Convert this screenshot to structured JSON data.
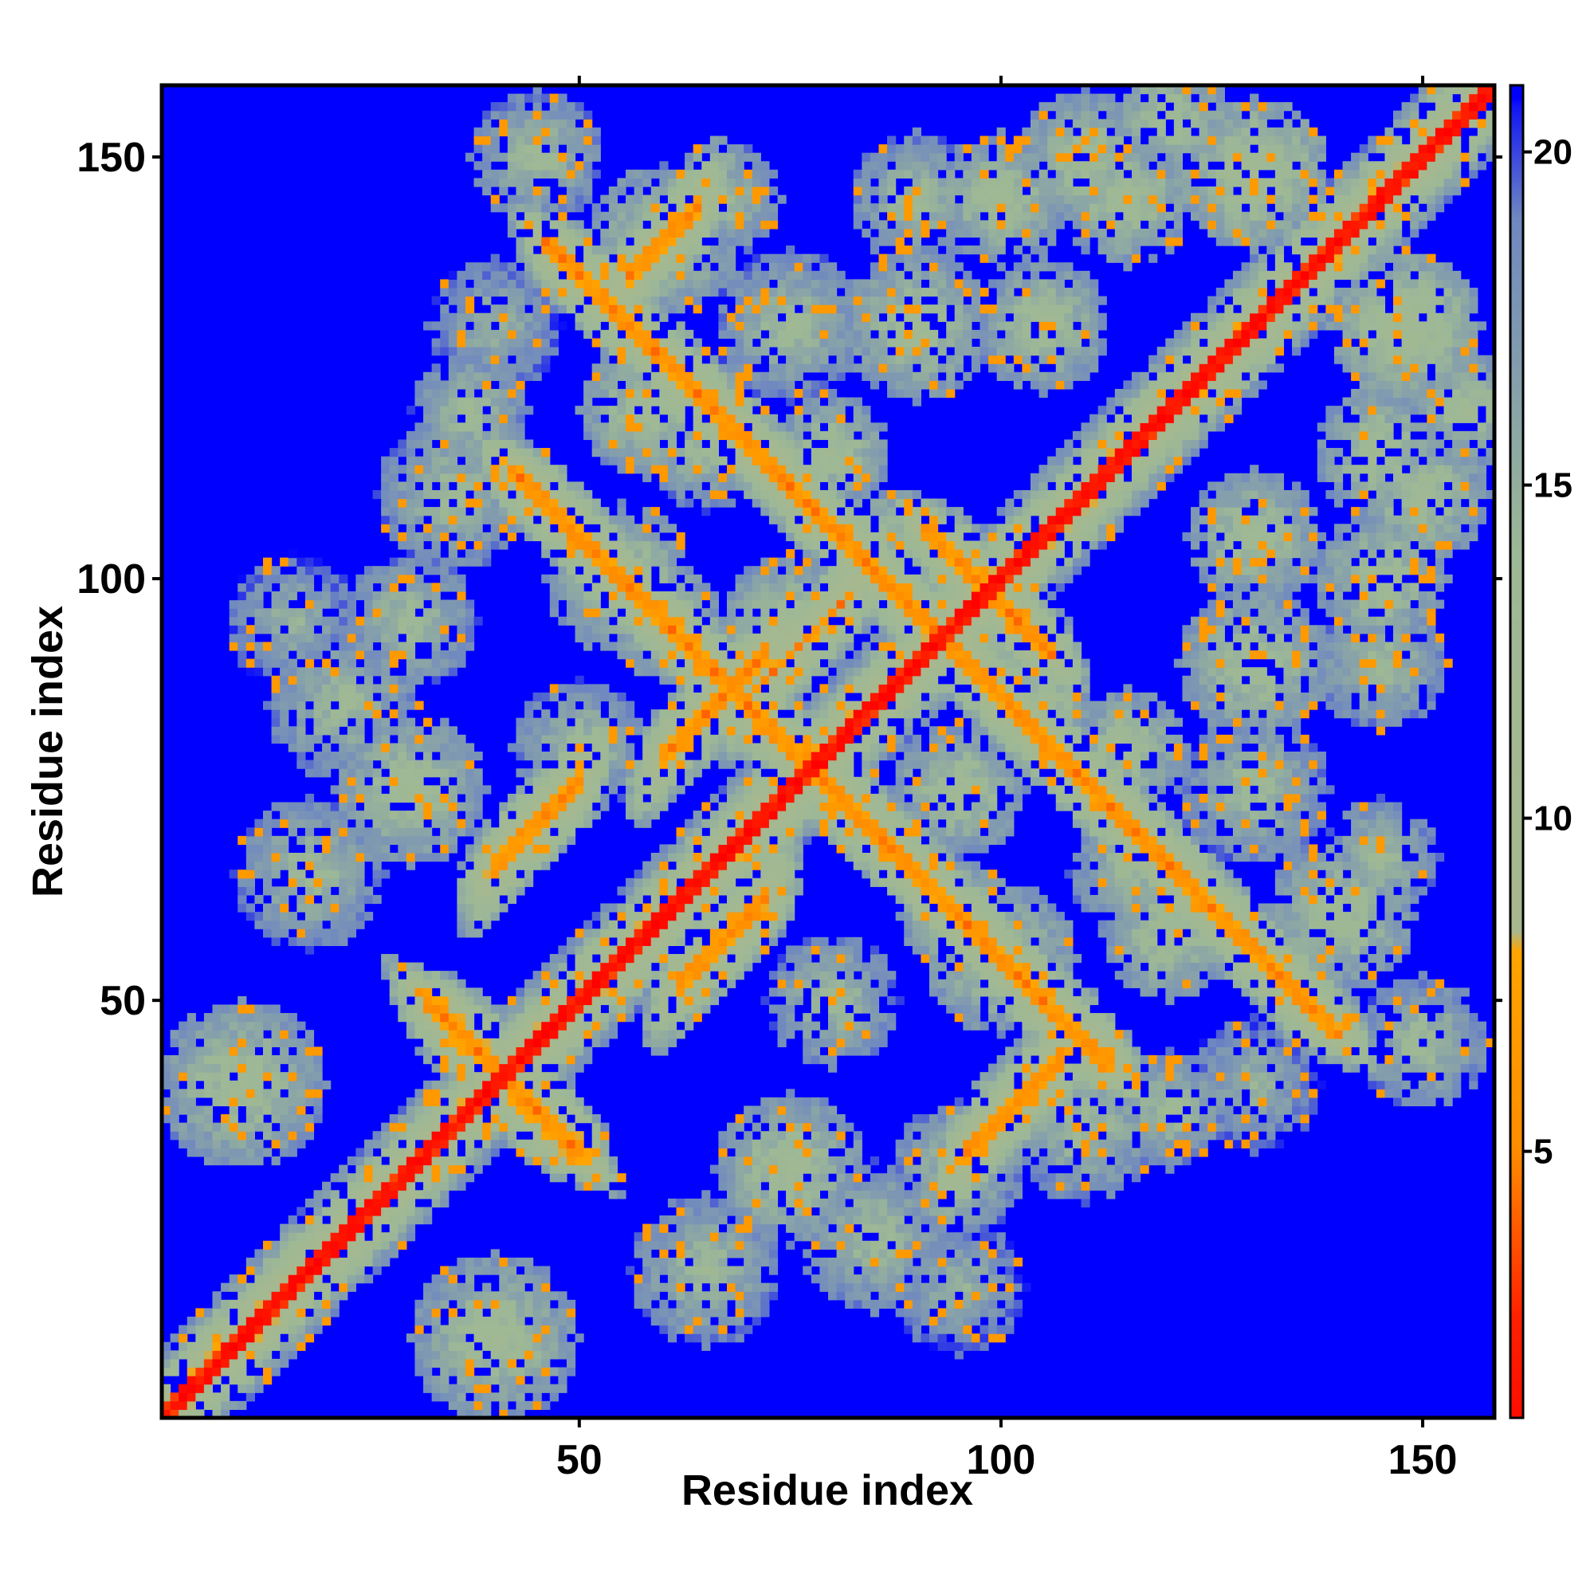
{
  "chart_data": {
    "type": "heatmap",
    "title": "",
    "xlabel": "Residue index",
    "ylabel": "Residue index",
    "n_residues": 158,
    "xlim": [
      0.5,
      158.5
    ],
    "ylim": [
      0.5,
      158.5
    ],
    "x_ticks": [
      50,
      100,
      150
    ],
    "y_ticks": [
      50,
      100,
      150
    ],
    "x_tick_labels": [
      "50",
      "100",
      "150"
    ],
    "y_tick_labels": [
      "50",
      "100",
      "150"
    ],
    "colorbar": {
      "range": [
        1,
        21
      ],
      "ticks": [
        5,
        10,
        15,
        20
      ],
      "tick_labels": [
        "5",
        "10",
        "15",
        "20"
      ]
    },
    "color_scale": {
      "stops": [
        {
          "value": 0.0,
          "color": "#ff0000"
        },
        {
          "value": 2.5,
          "color": "#ff2000"
        },
        {
          "value": 5.0,
          "color": "#ff8c00"
        },
        {
          "value": 8.0,
          "color": "#ffa500"
        },
        {
          "value": 8.3,
          "color": "#a8b88e"
        },
        {
          "value": 14.0,
          "color": "#9db896"
        },
        {
          "value": 19.0,
          "color": "#6f88c0"
        },
        {
          "value": 21.0,
          "color": "#0000ff"
        }
      ],
      "background": "#0000ff"
    },
    "grid": false,
    "legend": "colorbar-right",
    "contact_segments": [
      {
        "type": "diagonal",
        "from": 1,
        "to": 158,
        "width": 1.2,
        "halo": 5.0
      },
      {
        "type": "antiparallel",
        "sum": 82,
        "from": 32,
        "to": 50,
        "width": 1.3,
        "halo": 4
      },
      {
        "type": "parallel",
        "offset": -64,
        "from": 96,
        "to": 107,
        "width": 1.0,
        "halo": 4
      },
      {
        "type": "parallel",
        "offset": 26,
        "from": 40,
        "to": 50,
        "width": 0.9,
        "halo": 4
      },
      {
        "type": "antiparallel",
        "sum": 155,
        "from": 42,
        "to": 56,
        "width": 0.9,
        "halo": 4
      },
      {
        "type": "parallel",
        "offset": -10,
        "from": 62,
        "to": 72,
        "width": 0.8,
        "halo": 4
      },
      {
        "type": "parallel",
        "offset": 19,
        "from": 60,
        "to": 72,
        "width": 0.8,
        "halo": 4
      },
      {
        "type": "antiparallel",
        "sum": 186,
        "from": 126,
        "to": 140,
        "width": 0.8,
        "halo": 4
      },
      {
        "type": "parallel",
        "offset": 80,
        "from": 56,
        "to": 64,
        "width": 0.8,
        "halo": 4
      },
      {
        "type": "antiparallel",
        "sum": 197,
        "from": 93,
        "to": 106,
        "width": 0.8,
        "halo": 4
      },
      {
        "type": "parallel",
        "offset": 16,
        "from": 70,
        "to": 82,
        "width": 0.7,
        "halo": 4
      }
    ],
    "contact_blobs": [
      {
        "i": 10,
        "j": 40,
        "r": 10,
        "v": 12
      },
      {
        "i": 18,
        "j": 65,
        "r": 9,
        "v": 13
      },
      {
        "i": 22,
        "j": 85,
        "r": 9,
        "v": 13
      },
      {
        "i": 16,
        "j": 95,
        "r": 8,
        "v": 14
      },
      {
        "i": 30,
        "j": 75,
        "r": 9,
        "v": 12
      },
      {
        "i": 30,
        "j": 95,
        "r": 8,
        "v": 13
      },
      {
        "i": 35,
        "j": 110,
        "r": 9,
        "v": 13
      },
      {
        "i": 40,
        "j": 130,
        "r": 8,
        "v": 14
      },
      {
        "i": 45,
        "j": 150,
        "r": 8,
        "v": 13
      },
      {
        "i": 37,
        "j": 120,
        "r": 7,
        "v": 13
      },
      {
        "i": 55,
        "j": 100,
        "r": 9,
        "v": 12
      },
      {
        "i": 58,
        "j": 120,
        "r": 8,
        "v": 12
      },
      {
        "i": 60,
        "j": 140,
        "r": 9,
        "v": 12
      },
      {
        "i": 67,
        "j": 145,
        "r": 7,
        "v": 13
      },
      {
        "i": 60,
        "j": 95,
        "r": 7,
        "v": 12
      },
      {
        "i": 75,
        "j": 95,
        "r": 8,
        "v": 12
      },
      {
        "i": 75,
        "j": 130,
        "r": 9,
        "v": 13
      },
      {
        "i": 90,
        "j": 130,
        "r": 9,
        "v": 12
      },
      {
        "i": 90,
        "j": 145,
        "r": 8,
        "v": 13
      },
      {
        "i": 80,
        "j": 115,
        "r": 7,
        "v": 12
      },
      {
        "i": 100,
        "j": 145,
        "r": 8,
        "v": 12
      },
      {
        "i": 110,
        "j": 150,
        "r": 8,
        "v": 12
      },
      {
        "i": 115,
        "j": 145,
        "r": 8,
        "v": 12
      },
      {
        "i": 130,
        "j": 148,
        "r": 9,
        "v": 11
      },
      {
        "i": 120,
        "j": 155,
        "r": 7,
        "v": 12
      },
      {
        "i": 65,
        "j": 115,
        "r": 7,
        "v": 13
      },
      {
        "i": 105,
        "j": 130,
        "r": 8,
        "v": 12
      },
      {
        "i": 50,
        "j": 80,
        "r": 8,
        "v": 13
      },
      {
        "i": 85,
        "j": 105,
        "r": 6,
        "v": 12
      }
    ]
  }
}
